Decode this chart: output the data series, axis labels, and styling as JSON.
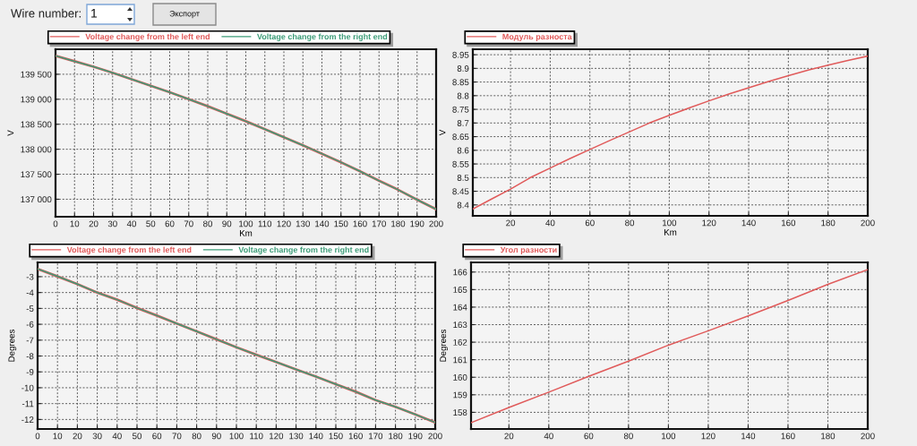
{
  "chart_data": [
    {
      "type": "line",
      "xlabel": "Km",
      "ylabel": "V",
      "annotations": [
        "Wire number:",
        "1",
        "Экспорт"
      ],
      "x": [
        0,
        10,
        20,
        30,
        40,
        50,
        60,
        70,
        80,
        90,
        100,
        110,
        120,
        130,
        140,
        150,
        160,
        170,
        180,
        190,
        200
      ],
      "series": [
        {
          "name": "Voltage change from the left end",
          "color": "#e05a5a",
          "values": [
            139870,
            139760,
            139650,
            139530,
            139400,
            139270,
            139140,
            139000,
            138860,
            138710,
            138560,
            138400,
            138240,
            138080,
            137910,
            137740,
            137560,
            137370,
            137190,
            136990,
            136800
          ]
        },
        {
          "name": "Voltage change from the right end",
          "color": "#3d9c78",
          "values": [
            139870,
            139760,
            139650,
            139530,
            139400,
            139270,
            139140,
            139000,
            138860,
            138710,
            138560,
            138400,
            138240,
            138080,
            137910,
            137740,
            137560,
            137370,
            137190,
            136990,
            136800
          ]
        }
      ],
      "xlim": [
        0,
        200
      ],
      "xticks": [
        0,
        10,
        20,
        30,
        40,
        50,
        60,
        70,
        80,
        90,
        100,
        110,
        120,
        130,
        140,
        150,
        160,
        170,
        180,
        190,
        200
      ],
      "ylim": [
        136650,
        140000
      ],
      "yticks": [
        {
          "value": 137000,
          "label": "137 000"
        },
        {
          "value": 137500,
          "label": "137 500"
        },
        {
          "value": 138000,
          "label": "138 000"
        },
        {
          "value": 138500,
          "label": "138 500"
        },
        {
          "value": 139000,
          "label": "139 000"
        },
        {
          "value": 139500,
          "label": "139 500"
        }
      ],
      "grid": true,
      "legend": "top left"
    },
    {
      "type": "line",
      "xlabel": "Km",
      "ylabel": "V",
      "x": [
        1,
        10,
        20,
        30,
        40,
        50,
        60,
        70,
        80,
        90,
        100,
        110,
        120,
        130,
        140,
        150,
        160,
        170,
        180,
        190,
        200
      ],
      "series": [
        {
          "name": "Модуль разноста",
          "color": "#e05a5a",
          "values": [
            8.385,
            8.42,
            8.458,
            8.5,
            8.535,
            8.57,
            8.603,
            8.636,
            8.668,
            8.7,
            8.728,
            8.755,
            8.781,
            8.806,
            8.829,
            8.852,
            8.873,
            8.894,
            8.912,
            8.929,
            8.945
          ]
        }
      ],
      "xlim": [
        1,
        200
      ],
      "xticks": [
        20,
        40,
        60,
        80,
        100,
        120,
        140,
        160,
        180,
        200
      ],
      "ylim": [
        8.36,
        8.97
      ],
      "yticks": [
        8.4,
        8.45,
        8.5,
        8.55,
        8.6,
        8.65,
        8.7,
        8.75,
        8.8,
        8.85,
        8.9,
        8.95
      ],
      "grid": true,
      "legend": "top left"
    },
    {
      "type": "line",
      "ylabel": "Degrees",
      "x": [
        0,
        10,
        20,
        30,
        40,
        50,
        60,
        70,
        80,
        90,
        100,
        110,
        120,
        130,
        140,
        150,
        160,
        170,
        180,
        190,
        200
      ],
      "series": [
        {
          "name": "Voltage change from the left end",
          "color": "#e05a5a",
          "values": [
            -2.51,
            -2.98,
            -3.47,
            -4.0,
            -4.45,
            -4.97,
            -5.45,
            -5.95,
            -6.45,
            -6.95,
            -7.45,
            -7.92,
            -8.38,
            -8.85,
            -9.3,
            -9.78,
            -10.25,
            -10.78,
            -11.2,
            -11.68,
            -12.19
          ]
        },
        {
          "name": "Voltage change from the right end",
          "color": "#3d9c78",
          "values": [
            -2.51,
            -2.98,
            -3.47,
            -4.0,
            -4.45,
            -4.97,
            -5.45,
            -5.95,
            -6.45,
            -6.95,
            -7.45,
            -7.92,
            -8.38,
            -8.85,
            -9.3,
            -9.78,
            -10.25,
            -10.78,
            -11.2,
            -11.68,
            -12.19
          ]
        }
      ],
      "xlim": [
        0,
        200
      ],
      "xticks": [
        0,
        10,
        20,
        30,
        40,
        50,
        60,
        70,
        80,
        90,
        100,
        110,
        120,
        130,
        140,
        150,
        160,
        170,
        180,
        190,
        200
      ],
      "ylim": [
        -12.6,
        -2.1
      ],
      "yticks": [
        -12,
        -11,
        -10,
        -9,
        -8,
        -7,
        -6,
        -5,
        -4,
        -3
      ],
      "grid": true,
      "legend": "top left"
    },
    {
      "type": "line",
      "ylabel": "Degrees",
      "x": [
        1,
        20,
        40,
        60,
        80,
        100,
        120,
        140,
        160,
        180,
        200
      ],
      "series": [
        {
          "name": "Угол разности",
          "color": "#e05a5a",
          "values": [
            157.41,
            158.28,
            159.15,
            160.05,
            160.92,
            161.83,
            162.65,
            163.5,
            164.38,
            165.3,
            166.14
          ]
        }
      ],
      "xlim": [
        1,
        200
      ],
      "xticks": [
        20,
        40,
        60,
        80,
        100,
        120,
        140,
        160,
        180,
        200
      ],
      "ylim": [
        157.05,
        166.55
      ],
      "yticks": [
        158,
        159,
        160,
        161,
        162,
        163,
        164,
        165,
        166
      ],
      "grid": true,
      "legend": "top left"
    }
  ]
}
